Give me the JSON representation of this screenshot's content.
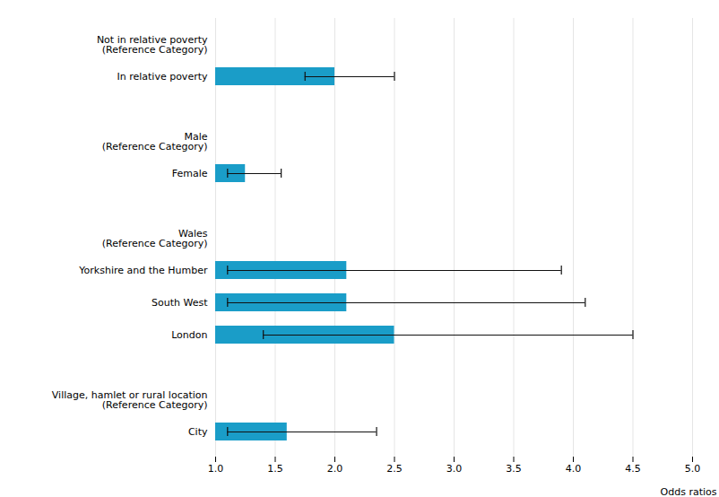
{
  "chart_data": {
    "type": "bar",
    "orientation": "horizontal",
    "categories": [
      "Not in relative poverty\n(Reference Category)",
      "In relative poverty",
      null,
      "Male\n(Reference Category)",
      "Female",
      null,
      "Wales\n(Reference Category)",
      "Yorkshire and the Humber",
      "South West",
      "London",
      null,
      "Village, hamlet or rural location\n(Reference Category)",
      "City"
    ],
    "values": [
      null,
      2.0,
      null,
      null,
      1.25,
      null,
      null,
      2.1,
      2.1,
      2.5,
      null,
      null,
      1.6
    ],
    "ci_low": [
      null,
      1.75,
      null,
      null,
      1.1,
      null,
      null,
      1.1,
      1.1,
      1.4,
      null,
      null,
      1.1
    ],
    "ci_high": [
      null,
      2.5,
      null,
      null,
      1.55,
      null,
      null,
      3.9,
      4.1,
      4.5,
      null,
      null,
      2.35
    ],
    "color": "#1a9dc8",
    "xlabel": "Odds ratios",
    "xlim": [
      1.0,
      5.0
    ],
    "xticks": [
      {
        "value": 1.0,
        "label": "1.0"
      },
      1.5,
      {
        "value": 2.0,
        "label": "2.0"
      },
      2.5,
      {
        "value": 3.0,
        "label": "3.0"
      },
      3.5,
      {
        "value": 4.0,
        "label": "4.0"
      },
      4.5,
      {
        "value": 5.0,
        "label": "5.0"
      }
    ],
    "grid": true
  }
}
